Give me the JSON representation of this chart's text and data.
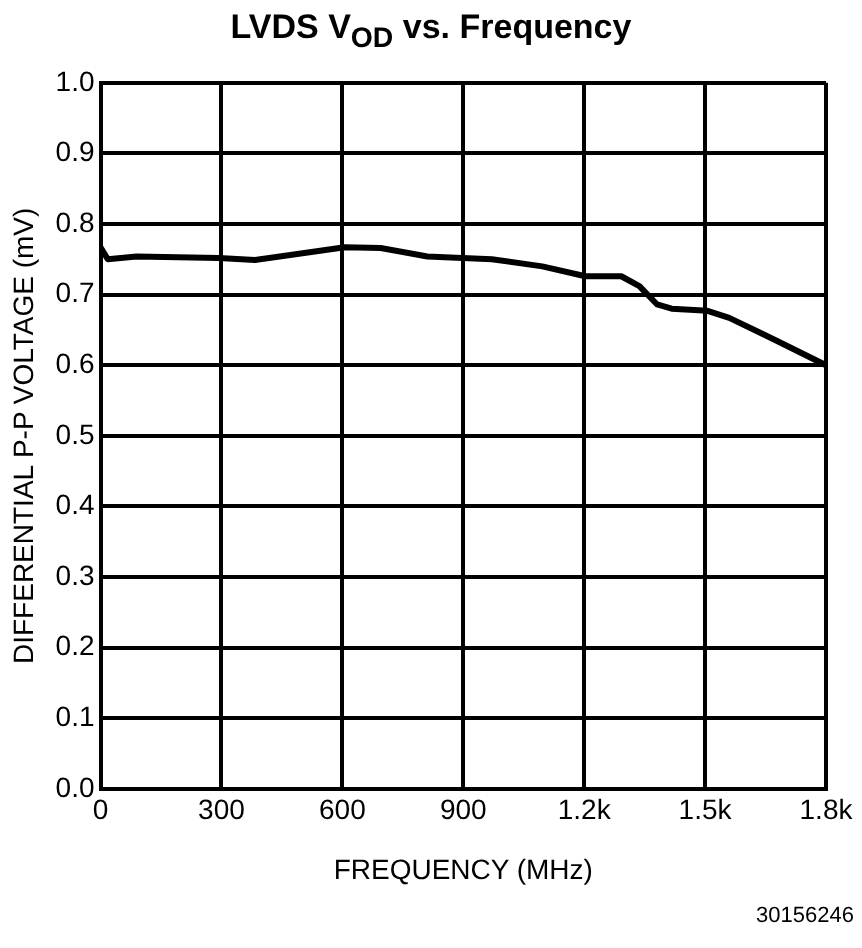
{
  "chart_data": {
    "type": "line",
    "title": "LVDS V$_{OD}$ vs. Frequency",
    "xlabel": "FREQUENCY (MHz)",
    "ylabel": "DIFFERENTIAL P-P VOLTAGE (mV)",
    "annotations": [
      "30156246"
    ],
    "x": [
      0,
      18,
      89,
      294,
      383,
      606,
      695,
      811,
      971,
      1096,
      1203,
      1292,
      1337,
      1381,
      1417,
      1506,
      1560,
      1680,
      1800
    ],
    "series": [
      {
        "color": "#000000",
        "values": [
          0.767,
          0.75,
          0.754,
          0.752,
          0.749,
          0.767,
          0.766,
          0.754,
          0.75,
          0.74,
          0.726,
          0.726,
          0.712,
          0.686,
          0.68,
          0.677,
          0.667,
          0.634,
          0.6
        ]
      }
    ],
    "xlim": [
      0,
      1800
    ],
    "xticks": [
      0,
      300,
      600,
      900,
      {
        "value": 1200,
        "label": "1.2k"
      },
      {
        "value": 1500,
        "label": "1.5k"
      },
      {
        "value": 1800,
        "label": "1.8k"
      }
    ],
    "ylim": [
      0,
      1
    ],
    "yticks": [
      {
        "value": 0,
        "label": "0.0"
      },
      0.1,
      0.2,
      0.3,
      0.4,
      0.5,
      0.6,
      0.7,
      0.8,
      0.9,
      {
        "value": 1,
        "label": "1.0"
      }
    ],
    "grid": true,
    "legend": false,
    "marker": "none",
    "line_style": "solid"
  }
}
